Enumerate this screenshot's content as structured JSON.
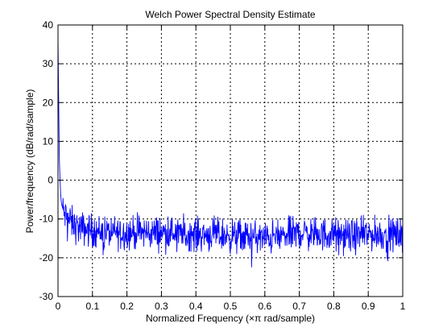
{
  "chart_data": {
    "type": "line",
    "title": "Welch Power Spectral Density Estimate",
    "xlabel": "Normalized Frequency  (×π rad/sample)",
    "ylabel": "Power/frequency  (dB/rad/sample)",
    "xlim": [
      0,
      1
    ],
    "ylim": [
      -30,
      40
    ],
    "xticks": [
      0,
      0.1,
      0.2,
      0.3,
      0.4,
      0.5,
      0.6,
      0.7,
      0.8,
      0.9,
      1
    ],
    "xtick_labels": [
      "0",
      "0.1",
      "0.2",
      "0.3",
      "0.4",
      "0.5",
      "0.6",
      "0.7",
      "0.8",
      "0.9",
      "1"
    ],
    "yticks": [
      -30,
      -20,
      -10,
      0,
      10,
      20,
      30,
      40
    ],
    "ytick_labels": [
      "-30",
      "-20",
      "-10",
      "0",
      "10",
      "20",
      "30",
      "40"
    ],
    "grid": true,
    "grid_style": "dotted",
    "series": [
      {
        "color": "#0000ff",
        "x": [
          0,
          0.002,
          0.004,
          0.006,
          0.008,
          0.01,
          0.015,
          0.02,
          0.03,
          0.04,
          0.05,
          0.07,
          0.1,
          0.15,
          0.2,
          0.25,
          0.3,
          0.35,
          0.4,
          0.45,
          0.5,
          0.55,
          0.6,
          0.65,
          0.7,
          0.75,
          0.8,
          0.85,
          0.9,
          0.95,
          1
        ],
        "y": [
          37,
          20,
          5,
          0,
          -4,
          -6,
          -8,
          -9,
          -10,
          -11,
          -12,
          -12.5,
          -13,
          -13.5,
          -13.5,
          -13.5,
          -13.5,
          -13.5,
          -14,
          -14,
          -14.5,
          -14.5,
          -15,
          -14.5,
          -13.5,
          -14,
          -14,
          -14.5,
          -14,
          -14,
          -14
        ]
      }
    ]
  },
  "colors": {
    "line": "#0000ff",
    "axes": "#000000",
    "grid": "#000000",
    "background": "#ffffff"
  }
}
